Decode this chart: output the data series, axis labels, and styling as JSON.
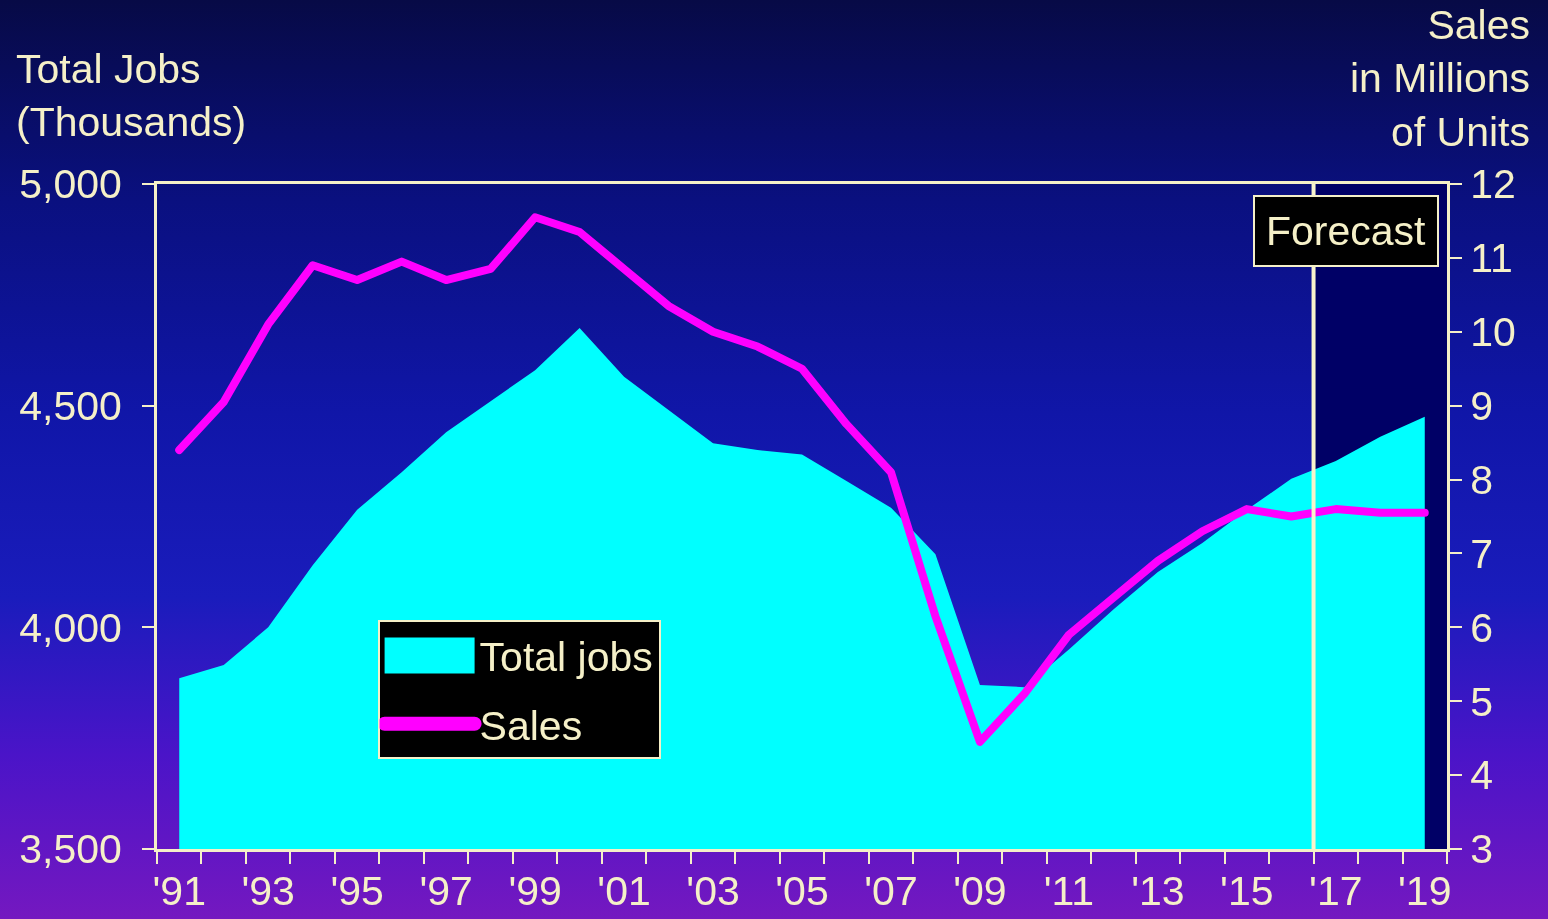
{
  "chart_data": {
    "type": "area",
    "ylabel": "Total Jobs\n(Thousands)",
    "y2label": "Sales\nin Millions\nof Units",
    "x": [
      1991,
      1992,
      1993,
      1994,
      1995,
      1996,
      1997,
      1998,
      1999,
      2000,
      2001,
      2002,
      2003,
      2004,
      2005,
      2006,
      2007,
      2008,
      2009,
      2010,
      2011,
      2012,
      2013,
      2014,
      2015,
      2016,
      2017,
      2018,
      2019
    ],
    "xlim": [
      1990.5,
      2019.5
    ],
    "xticks": [
      {
        "value": 1990.5,
        "label": null
      },
      {
        "value": 1991,
        "label": "'91"
      },
      {
        "value": 1991.5,
        "label": null
      },
      {
        "value": 1992.5,
        "label": null
      },
      {
        "value": 1993,
        "label": "'93"
      },
      {
        "value": 1993.5,
        "label": null
      },
      {
        "value": 1994.5,
        "label": null
      },
      {
        "value": 1995,
        "label": "'95"
      },
      {
        "value": 1995.5,
        "label": null
      },
      {
        "value": 1996.5,
        "label": null
      },
      {
        "value": 1997,
        "label": "'97"
      },
      {
        "value": 1997.5,
        "label": null
      },
      {
        "value": 1998.5,
        "label": null
      },
      {
        "value": 1999,
        "label": "'99"
      },
      {
        "value": 1999.5,
        "label": null
      },
      {
        "value": 2000.5,
        "label": null
      },
      {
        "value": 2001,
        "label": "'01"
      },
      {
        "value": 2001.5,
        "label": null
      },
      {
        "value": 2002.5,
        "label": null
      },
      {
        "value": 2003,
        "label": "'03"
      },
      {
        "value": 2003.5,
        "label": null
      },
      {
        "value": 2004.5,
        "label": null
      },
      {
        "value": 2005,
        "label": "'05"
      },
      {
        "value": 2005.5,
        "label": null
      },
      {
        "value": 2006.5,
        "label": null
      },
      {
        "value": 2007,
        "label": "'07"
      },
      {
        "value": 2007.5,
        "label": null
      },
      {
        "value": 2008.5,
        "label": null
      },
      {
        "value": 2009,
        "label": "'09"
      },
      {
        "value": 2009.5,
        "label": null
      },
      {
        "value": 2010.5,
        "label": null
      },
      {
        "value": 2011,
        "label": "'11"
      },
      {
        "value": 2011.5,
        "label": null
      },
      {
        "value": 2012.5,
        "label": null
      },
      {
        "value": 2013,
        "label": "'13"
      },
      {
        "value": 2013.5,
        "label": null
      },
      {
        "value": 2014.5,
        "label": null
      },
      {
        "value": 2015,
        "label": "'15"
      },
      {
        "value": 2015.5,
        "label": null
      },
      {
        "value": 2016.5,
        "label": null
      },
      {
        "value": 2017,
        "label": "'17"
      },
      {
        "value": 2017.5,
        "label": null
      },
      {
        "value": 2018.5,
        "label": null
      },
      {
        "value": 2019,
        "label": "'19"
      },
      {
        "value": 2019.5,
        "label": null
      }
    ],
    "ylim": [
      3500,
      5000
    ],
    "yticks": [
      {
        "value": 3500,
        "label": "3,500"
      },
      {
        "value": 4000,
        "label": "4,000"
      },
      {
        "value": 4500,
        "label": "4,500"
      },
      {
        "value": 5000,
        "label": "5,000"
      }
    ],
    "y2lim": [
      3,
      12
    ],
    "y2ticks": [
      3,
      4,
      5,
      6,
      7,
      8,
      9,
      10,
      11,
      12
    ],
    "series": [
      {
        "name": "Total jobs",
        "type": "area",
        "color": "#00ffff",
        "values": [
          3885,
          3915,
          4000,
          4140,
          4265,
          4350,
          4440,
          4510,
          4580,
          4675,
          4565,
          4490,
          4415,
          4400,
          4390,
          4330,
          4270,
          4165,
          3870,
          3865,
          3950,
          4040,
          4125,
          4190,
          4265,
          4335,
          4375,
          4430,
          4475
        ]
      },
      {
        "name": "Sales",
        "type": "line",
        "axis": "y2",
        "color": "#ff00ff",
        "values": [
          8.4,
          9.05,
          10.1,
          10.9,
          10.7,
          10.95,
          10.7,
          10.85,
          11.55,
          11.35,
          10.85,
          10.35,
          10.0,
          9.8,
          9.5,
          8.75,
          8.1,
          6.15,
          4.45,
          5.1,
          5.9,
          6.4,
          6.9,
          7.3,
          7.6,
          7.5,
          7.6,
          7.55,
          7.55
        ]
      }
    ],
    "bands": [
      {
        "axis": "x",
        "from": 2016.5,
        "to": 2019.5,
        "label": "Forecast",
        "color": "#000066"
      }
    ],
    "ref_lines": [
      {
        "axis": "x",
        "value": 2016.5,
        "color": "#f8f4cc"
      }
    ],
    "legend": "bottom left"
  }
}
